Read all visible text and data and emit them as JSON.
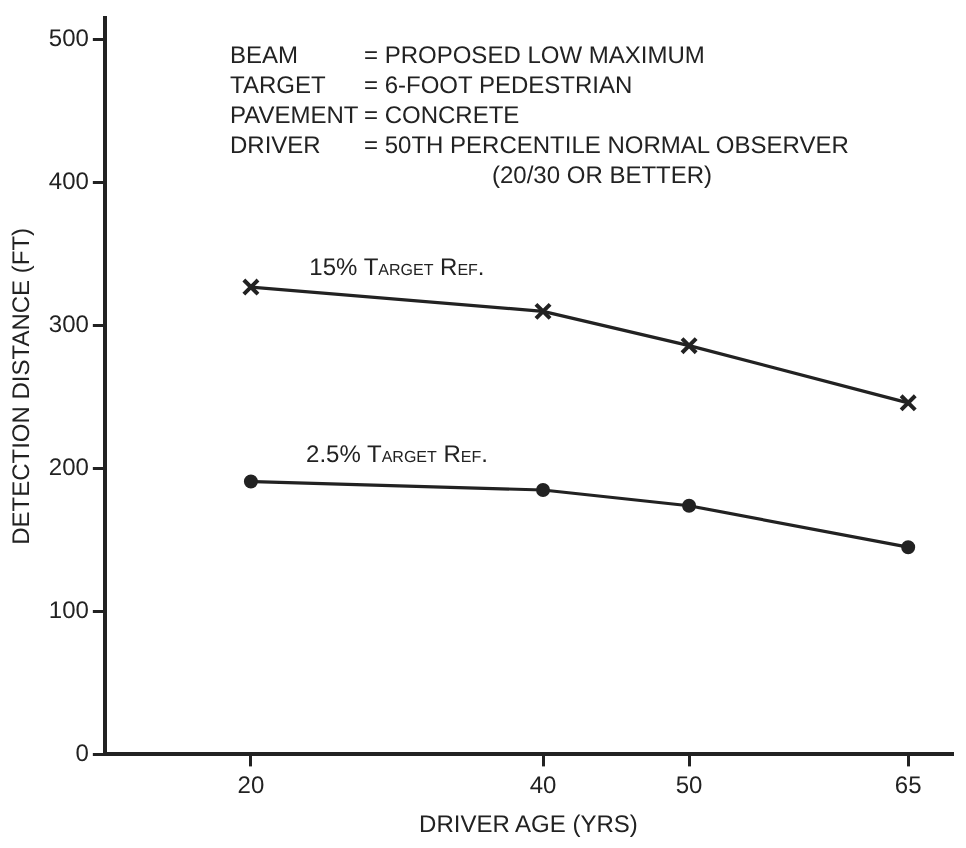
{
  "chart_data": {
    "type": "line",
    "xlabel": "DRIVER AGE (YRS)",
    "ylabel": "DETECTION DISTANCE (FT)",
    "x": [
      20,
      40,
      50,
      65
    ],
    "series": [
      {
        "name": "15% Target Ref.",
        "color": "#222222",
        "marker": "cross",
        "values": [
          327,
          310,
          286,
          246
        ]
      },
      {
        "name": "2.5% Target Ref.",
        "color": "#222222",
        "marker": "circle",
        "values": [
          191,
          185,
          174,
          145
        ]
      }
    ],
    "xlim": [
      10,
      68
    ],
    "xticks": [
      20,
      40,
      50,
      65
    ],
    "ylim": [
      0,
      515
    ],
    "yticks": [
      0,
      100,
      200,
      300,
      400,
      500
    ],
    "grid": false,
    "legend": false,
    "line_style": "solid",
    "annotations": [
      "BEAM = PROPOSED LOW MAXIMUM",
      "TARGET = 6-FOOT PEDESTRIAN",
      "PAVEMENT = CONCRETE",
      "DRIVER = 50TH PERCENTILE NORMAL OBSERVER",
      "(20/30 OR BETTER)"
    ]
  }
}
